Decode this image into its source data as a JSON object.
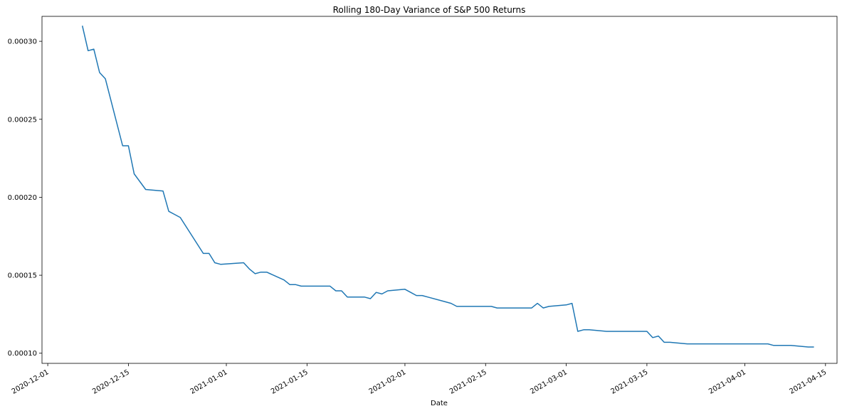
{
  "chart_data": {
    "type": "line",
    "title": "Rolling 180-Day Variance of S&P 500 Returns",
    "xlabel": "Date",
    "ylabel": "",
    "grid": false,
    "legend": "none",
    "line_color": "#1f77b4",
    "xlim": [
      "2020-11-30",
      "2021-04-17"
    ],
    "ylim": [
      9.35e-05,
      0.000316
    ],
    "x_ticks": [
      "2020-12-01",
      "2020-12-15",
      "2021-01-01",
      "2021-01-15",
      "2021-02-01",
      "2021-02-15",
      "2021-03-01",
      "2021-03-15",
      "2021-04-01",
      "2021-04-15"
    ],
    "y_ticks": [
      0.0001,
      0.00015,
      0.0002,
      0.00025,
      0.0003
    ],
    "y_tick_labels": [
      "0.00010",
      "0.00015",
      "0.00020",
      "0.00025",
      "0.00030"
    ],
    "series": [
      {
        "x": [
          "2020-12-07",
          "2020-12-08",
          "2020-12-09",
          "2020-12-10",
          "2020-12-11",
          "2020-12-14",
          "2020-12-15",
          "2020-12-16",
          "2020-12-17",
          "2020-12-18",
          "2020-12-21",
          "2020-12-22",
          "2020-12-23",
          "2020-12-24",
          "2020-12-28",
          "2020-12-29",
          "2020-12-30",
          "2020-12-31",
          "2021-01-04",
          "2021-01-05",
          "2021-01-06",
          "2021-01-07",
          "2021-01-08",
          "2021-01-11",
          "2021-01-12",
          "2021-01-13",
          "2021-01-14",
          "2021-01-15",
          "2021-01-19",
          "2021-01-20",
          "2021-01-21",
          "2021-01-22",
          "2021-01-25",
          "2021-01-26",
          "2021-01-27",
          "2021-01-28",
          "2021-01-29",
          "2021-02-01",
          "2021-02-02",
          "2021-02-03",
          "2021-02-04",
          "2021-02-05",
          "2021-02-08",
          "2021-02-09",
          "2021-02-10",
          "2021-02-11",
          "2021-02-12",
          "2021-02-16",
          "2021-02-17",
          "2021-02-18",
          "2021-02-19",
          "2021-02-22",
          "2021-02-23",
          "2021-02-24",
          "2021-02-25",
          "2021-02-26",
          "2021-03-01",
          "2021-03-02",
          "2021-03-03",
          "2021-03-04",
          "2021-03-05",
          "2021-03-08",
          "2021-03-09",
          "2021-03-10",
          "2021-03-11",
          "2021-03-12",
          "2021-03-15",
          "2021-03-16",
          "2021-03-17",
          "2021-03-18",
          "2021-03-19",
          "2021-03-22",
          "2021-03-23",
          "2021-03-24",
          "2021-03-25",
          "2021-03-26",
          "2021-03-29",
          "2021-03-30",
          "2021-03-31",
          "2021-04-01",
          "2021-04-05",
          "2021-04-06",
          "2021-04-07",
          "2021-04-08",
          "2021-04-09",
          "2021-04-12",
          "2021-04-13"
        ],
        "y": [
          0.00031,
          0.000294,
          0.000295,
          0.00028,
          0.000276,
          0.000233,
          0.000233,
          0.000215,
          0.00021,
          0.000205,
          0.000204,
          0.000191,
          0.000189,
          0.000187,
          0.000164,
          0.000164,
          0.000158,
          0.000157,
          0.000158,
          0.000154,
          0.000151,
          0.000152,
          0.000152,
          0.000147,
          0.000144,
          0.000144,
          0.000143,
          0.000143,
          0.000143,
          0.00014,
          0.00014,
          0.000136,
          0.000136,
          0.000135,
          0.000139,
          0.000138,
          0.00014,
          0.000141,
          0.000139,
          0.000137,
          0.000137,
          0.000136,
          0.000133,
          0.000132,
          0.00013,
          0.00013,
          0.00013,
          0.00013,
          0.000129,
          0.000129,
          0.000129,
          0.000129,
          0.000129,
          0.000132,
          0.000129,
          0.00013,
          0.000131,
          0.000132,
          0.000114,
          0.000115,
          0.000115,
          0.000114,
          0.000114,
          0.000114,
          0.000114,
          0.000114,
          0.000114,
          0.00011,
          0.000111,
          0.000107,
          0.000107,
          0.000106,
          0.000106,
          0.000106,
          0.000106,
          0.000106,
          0.000106,
          0.000106,
          0.000106,
          0.000106,
          0.000106,
          0.000105,
          0.000105,
          0.000105,
          0.000105,
          0.000104,
          0.000104
        ]
      }
    ]
  }
}
